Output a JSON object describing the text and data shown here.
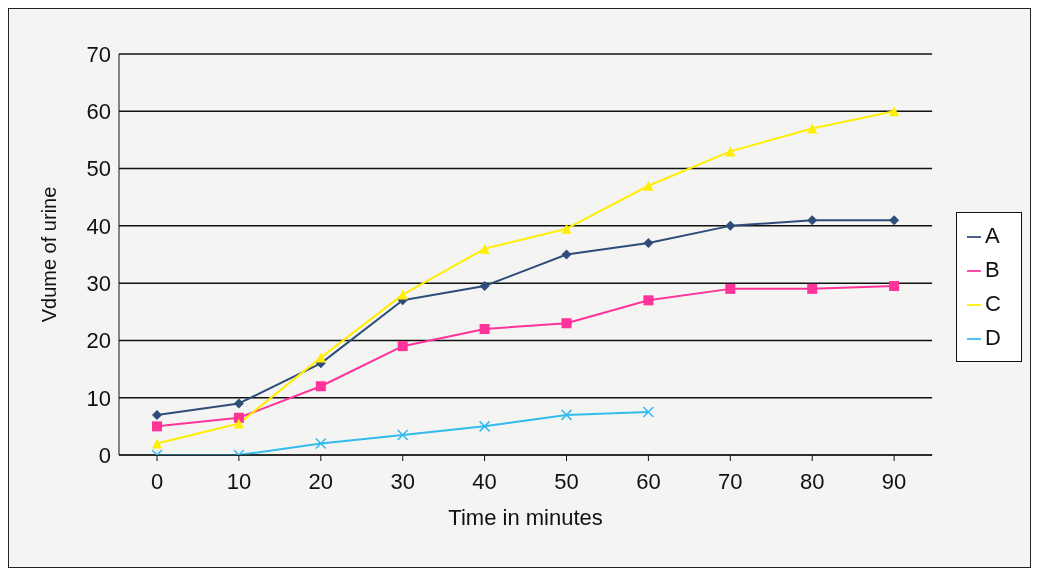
{
  "chart_data": {
    "type": "line",
    "xlabel": "Time in minutes",
    "ylabel": "Vdume of urine",
    "categories": [
      "0",
      "10",
      "20",
      "30",
      "40",
      "50",
      "60",
      "70",
      "80",
      "90"
    ],
    "series": [
      {
        "name": "A",
        "color": "#2f4d7a",
        "marker": "diamond",
        "values": [
          7,
          9,
          16,
          27,
          29.5,
          35,
          37,
          40,
          41,
          41
        ]
      },
      {
        "name": "B",
        "color": "#ff3399",
        "marker": "square",
        "values": [
          5,
          6.5,
          12,
          19,
          22,
          23,
          27,
          29,
          29,
          29.5
        ]
      },
      {
        "name": "C",
        "color": "#ffee00",
        "marker": "triangle",
        "values": [
          2,
          5.5,
          17,
          28,
          36,
          39.5,
          47,
          53,
          57,
          60
        ]
      },
      {
        "name": "D",
        "color": "#33bbee",
        "marker": "cross",
        "values": [
          0,
          0,
          2,
          3.5,
          5,
          7,
          7.5,
          null,
          null,
          null
        ]
      }
    ],
    "ylim": [
      0,
      70
    ],
    "yticks": [
      0,
      10,
      20,
      30,
      40,
      50,
      60,
      70
    ],
    "grid": "y",
    "legend": "right",
    "line_style": "solid"
  }
}
